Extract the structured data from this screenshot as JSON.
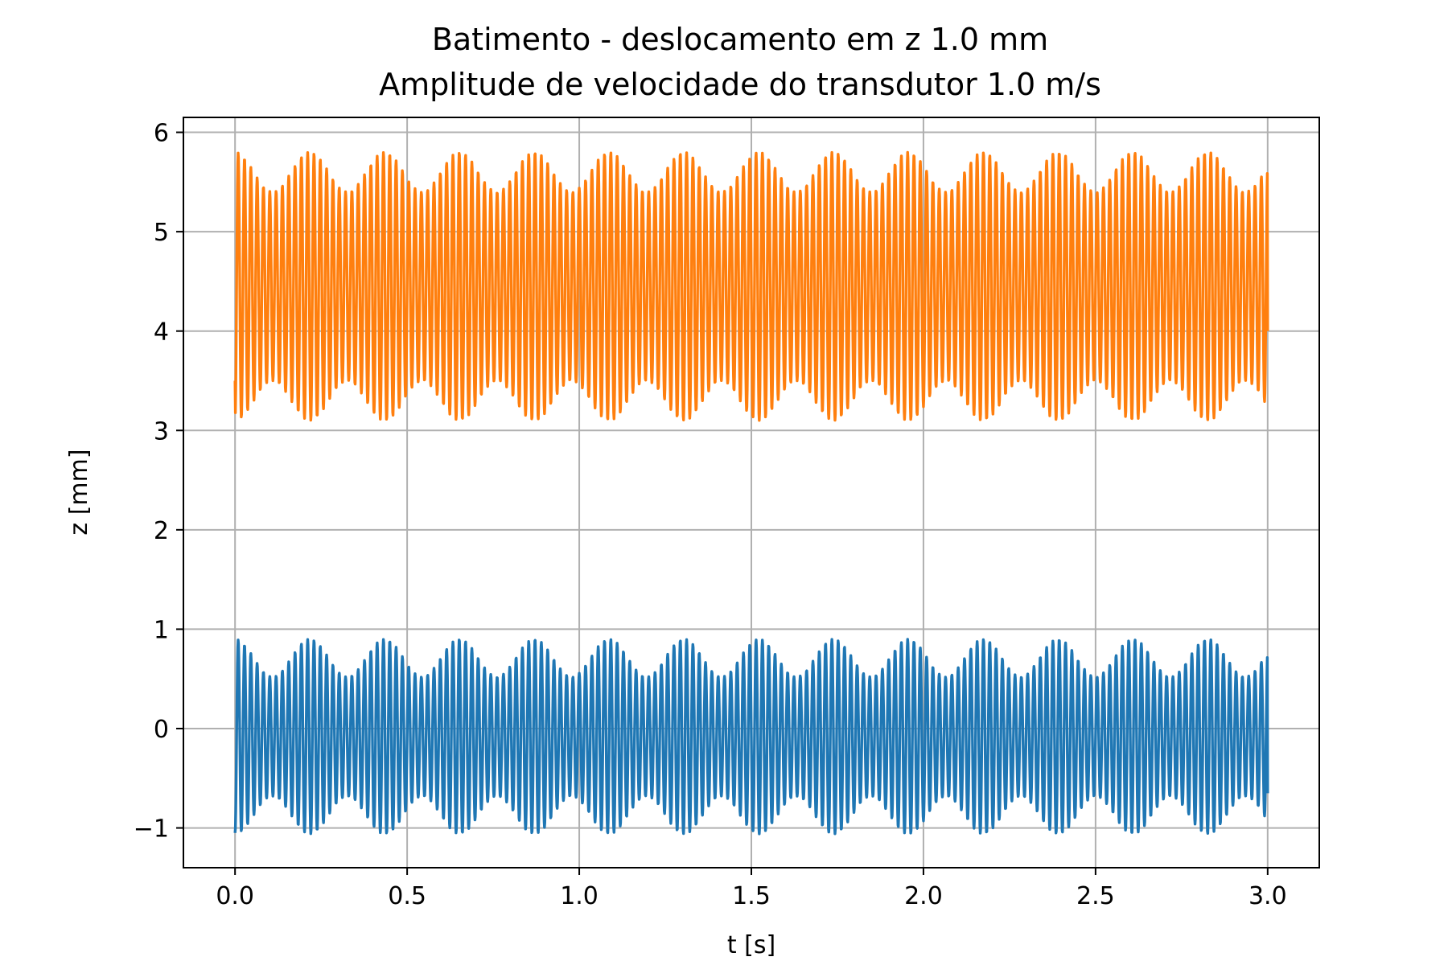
{
  "chart_data": {
    "type": "line",
    "title_line1": "Batimento - deslocamento em z 1.0 mm",
    "title_line2": "Amplitude de velocidade do transdutor 1.0 m/s",
    "xlabel": "t [s]",
    "ylabel": "z [mm]",
    "xlim": [
      -0.15,
      3.15
    ],
    "ylim": [
      -1.4,
      6.15
    ],
    "xticks": [
      0.0,
      0.5,
      1.0,
      1.5,
      2.0,
      2.5,
      3.0
    ],
    "xtick_labels": [
      "0.0",
      "0.5",
      "1.0",
      "1.5",
      "2.0",
      "2.5",
      "3.0"
    ],
    "yticks": [
      -1,
      0,
      1,
      2,
      3,
      4,
      5,
      6
    ],
    "ytick_labels": [
      "−1",
      "0",
      "1",
      "2",
      "3",
      "4",
      "5",
      "6"
    ],
    "grid": true,
    "legend": "none",
    "series": [
      {
        "color": "#1f77b4",
        "x_range": [
          0.0,
          3.0
        ],
        "offset": -0.08,
        "carrier_frequency_hz": 54.5,
        "beat_frequency_hz": 4.6,
        "envelope_min": 0.6,
        "envelope_max": 0.98,
        "start_value": -1.05,
        "end_value": -0.65
      },
      {
        "color": "#ff7f0e",
        "x_range": [
          0.0,
          3.0
        ],
        "offset": 4.45,
        "carrier_frequency_hz": 54.5,
        "beat_frequency_hz": 4.6,
        "envelope_min": 0.95,
        "envelope_max": 1.35,
        "start_value": 3.5,
        "end_value": 4.0
      }
    ]
  }
}
